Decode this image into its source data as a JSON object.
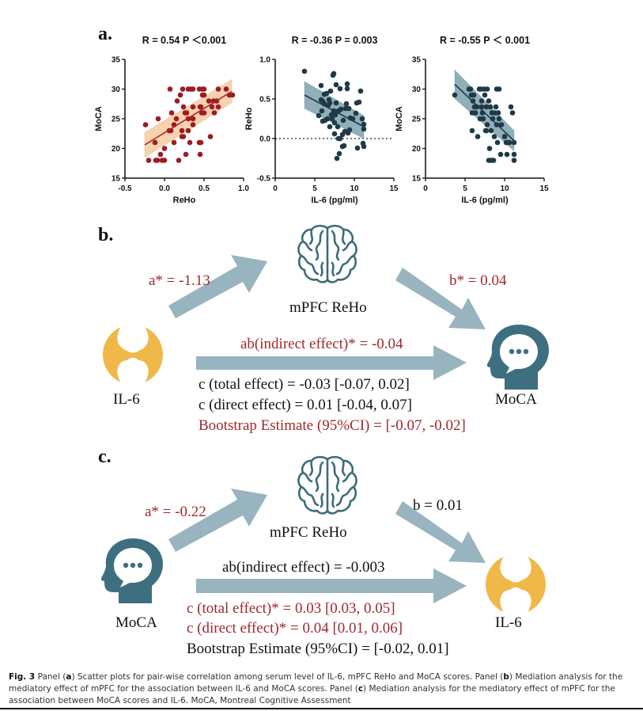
{
  "figure": {
    "panel_labels": {
      "a": "a.",
      "b": "b.",
      "c": "c."
    },
    "colors": {
      "reho_moca_points": "#9e1b22",
      "reho_moca_band": "#f6caa0",
      "il6_points": "#1e3a48",
      "il6_band": "#7ea1ad",
      "arrow": "#98b4be",
      "brain_icon": "#3d6b7a",
      "head_icon": "#3e6f80",
      "joint_icon": "#f0b849",
      "significant_text": "#a0282e"
    }
  },
  "chart_data": [
    {
      "type": "scatter",
      "title": "R = 0.54 P ＜0.001",
      "xlabel": "ReHo",
      "ylabel": "MoCA",
      "xlim": [
        -0.5,
        1.0
      ],
      "ylim": [
        15,
        35
      ],
      "xticks": [
        "-0.5",
        "0.0",
        "0.5",
        "1.0"
      ],
      "yticks": [
        "15",
        "20",
        "25",
        "30",
        "35"
      ],
      "fit_line": {
        "x": [
          -0.25,
          0.85
        ],
        "y": [
          20.6,
          29.6
        ]
      },
      "ci_band": {
        "x": [
          -0.25,
          0.85
        ],
        "lower": [
          18.5,
          27.7
        ],
        "upper": [
          22.7,
          31.6
        ]
      },
      "points": [
        [
          -0.24,
          24
        ],
        [
          -0.2,
          18
        ],
        [
          -0.12,
          21
        ],
        [
          -0.11,
          18
        ],
        [
          -0.09,
          18
        ],
        [
          -0.08,
          25
        ],
        [
          -0.05,
          19
        ],
        [
          -0.03,
          18
        ],
        [
          0.0,
          20
        ],
        [
          0.0,
          18
        ],
        [
          0.06,
          23
        ],
        [
          0.08,
          23
        ],
        [
          0.07,
          30
        ],
        [
          0.09,
          26
        ],
        [
          0.12,
          24
        ],
        [
          0.12,
          21
        ],
        [
          0.15,
          25
        ],
        [
          0.16,
          28
        ],
        [
          0.18,
          18
        ],
        [
          0.2,
          29
        ],
        [
          0.22,
          23
        ],
        [
          0.22,
          22
        ],
        [
          0.24,
          22
        ],
        [
          0.23,
          30
        ],
        [
          0.24,
          27
        ],
        [
          0.26,
          26
        ],
        [
          0.27,
          19
        ],
        [
          0.28,
          26
        ],
        [
          0.3,
          30
        ],
        [
          0.3,
          25
        ],
        [
          0.3,
          23
        ],
        [
          0.32,
          21
        ],
        [
          0.33,
          30
        ],
        [
          0.36,
          30
        ],
        [
          0.36,
          27
        ],
        [
          0.36,
          25
        ],
        [
          0.36,
          24
        ],
        [
          0.44,
          21
        ],
        [
          0.44,
          30
        ],
        [
          0.45,
          27
        ],
        [
          0.45,
          19
        ],
        [
          0.46,
          27
        ],
        [
          0.46,
          21
        ],
        [
          0.47,
          26
        ],
        [
          0.48,
          30
        ],
        [
          0.48,
          29
        ],
        [
          0.5,
          26
        ],
        [
          0.5,
          30
        ],
        [
          0.5,
          29
        ],
        [
          0.56,
          28
        ],
        [
          0.58,
          22
        ],
        [
          0.6,
          27
        ],
        [
          0.62,
          28
        ],
        [
          0.63,
          26
        ],
        [
          0.66,
          28
        ],
        [
          0.68,
          30
        ],
        [
          0.68,
          27
        ],
        [
          0.78,
          30
        ],
        [
          0.82,
          29
        ],
        [
          0.86,
          29
        ]
      ]
    },
    {
      "type": "scatter",
      "title": "R = -0.36 P = 0.003",
      "xlabel": "IL-6 (pg/ml)",
      "ylabel": "ReHo",
      "xlim": [
        0,
        15
      ],
      "ylim": [
        -0.5,
        1.0
      ],
      "xticks": [
        "0",
        "5",
        "10",
        "15"
      ],
      "yticks": [
        "-0.5",
        "0.0",
        "0.5",
        "1.0"
      ],
      "reference_line_y": 0.0,
      "fit_line": {
        "x": [
          3.7,
          11.2
        ],
        "y": [
          0.55,
          0.15
        ]
      },
      "ci_band": {
        "x": [
          3.7,
          11.2
        ],
        "lower": [
          0.38,
          0.0
        ],
        "upper": [
          0.72,
          0.29
        ]
      },
      "points": [
        [
          3.7,
          0.85
        ],
        [
          5.5,
          0.29
        ],
        [
          5.8,
          0.49
        ],
        [
          5.8,
          0.67
        ],
        [
          5.9,
          0.35
        ],
        [
          6.0,
          0.22
        ],
        [
          6.0,
          0.47
        ],
        [
          6.2,
          0.56
        ],
        [
          6.2,
          0.44
        ],
        [
          6.3,
          0.23
        ],
        [
          6.5,
          0.57
        ],
        [
          6.6,
          0.25
        ],
        [
          6.7,
          0.42
        ],
        [
          6.8,
          0.49
        ],
        [
          6.9,
          0.15
        ],
        [
          6.9,
          0.45
        ],
        [
          7.0,
          0.6
        ],
        [
          7.1,
          0.3
        ],
        [
          7.2,
          0.25
        ],
        [
          7.3,
          0.8
        ],
        [
          7.4,
          0.82
        ],
        [
          7.4,
          0.35
        ],
        [
          7.5,
          0.06
        ],
        [
          7.5,
          0.2
        ],
        [
          7.6,
          0.3
        ],
        [
          7.7,
          0.68
        ],
        [
          7.7,
          0.45
        ],
        [
          7.8,
          -0.25
        ],
        [
          7.9,
          0.15
        ],
        [
          8.0,
          0.0
        ],
        [
          8.0,
          0.35
        ],
        [
          8.1,
          -0.19
        ],
        [
          8.2,
          0.0
        ],
        [
          8.2,
          0.63
        ],
        [
          8.3,
          0.37
        ],
        [
          8.5,
          -0.1
        ],
        [
          8.5,
          0.05
        ],
        [
          8.6,
          0.23
        ],
        [
          8.7,
          -0.09
        ],
        [
          8.8,
          0.09
        ],
        [
          8.9,
          0.38
        ],
        [
          9.0,
          0.44
        ],
        [
          9.1,
          0.69
        ],
        [
          9.1,
          0.63
        ],
        [
          9.2,
          0.07
        ],
        [
          9.3,
          0.38
        ],
        [
          9.4,
          0.11
        ],
        [
          9.5,
          0.26
        ],
        [
          9.8,
          0.25
        ],
        [
          10.2,
          0.32
        ],
        [
          10.3,
          0.45
        ],
        [
          10.4,
          -0.12
        ],
        [
          10.6,
          0.46
        ],
        [
          10.8,
          0.6
        ],
        [
          11.0,
          0.25
        ],
        [
          11.1,
          -0.06
        ],
        [
          11.2,
          0.12
        ],
        [
          11.2,
          0.18
        ],
        [
          11.2,
          -0.1
        ]
      ]
    },
    {
      "type": "scatter",
      "title": "R = -0.55 P ＜ 0.001",
      "xlabel": "IL-6 (pg/ml)",
      "ylabel": "MoCA",
      "xlim": [
        0,
        15
      ],
      "ylim": [
        15,
        35
      ],
      "xticks": [
        "0",
        "5",
        "10",
        "15"
      ],
      "yticks": [
        "15",
        "20",
        "25",
        "30",
        "35"
      ],
      "fit_line": {
        "x": [
          3.7,
          11.2
        ],
        "y": [
          30.8,
          21.3
        ]
      },
      "ci_band": {
        "x": [
          3.7,
          11.2
        ],
        "lower": [
          28.4,
          19.6
        ],
        "upper": [
          33.2,
          23.0
        ]
      },
      "points": [
        [
          3.7,
          29
        ],
        [
          5.5,
          30
        ],
        [
          5.7,
          30
        ],
        [
          5.8,
          29
        ],
        [
          5.9,
          26
        ],
        [
          5.9,
          23
        ],
        [
          6.0,
          28
        ],
        [
          6.1,
          29
        ],
        [
          6.2,
          27
        ],
        [
          6.3,
          26
        ],
        [
          6.5,
          27
        ],
        [
          6.6,
          22
        ],
        [
          6.8,
          30
        ],
        [
          6.9,
          25
        ],
        [
          7.0,
          30
        ],
        [
          7.1,
          28
        ],
        [
          7.1,
          27
        ],
        [
          7.2,
          26
        ],
        [
          7.3,
          25
        ],
        [
          7.4,
          30
        ],
        [
          7.5,
          29
        ],
        [
          7.6,
          23
        ],
        [
          7.7,
          23
        ],
        [
          7.7,
          27
        ],
        [
          7.8,
          30
        ],
        [
          7.8,
          24
        ],
        [
          8.0,
          18
        ],
        [
          8.0,
          28
        ],
        [
          8.1,
          20
        ],
        [
          8.2,
          27
        ],
        [
          8.3,
          23
        ],
        [
          8.3,
          18
        ],
        [
          8.4,
          26
        ],
        [
          8.5,
          25
        ],
        [
          8.6,
          18
        ],
        [
          8.7,
          22
        ],
        [
          8.8,
          26
        ],
        [
          8.9,
          27
        ],
        [
          9.0,
          24
        ],
        [
          9.0,
          30
        ],
        [
          9.1,
          21
        ],
        [
          9.2,
          26
        ],
        [
          9.3,
          30
        ],
        [
          9.3,
          25
        ],
        [
          9.5,
          19
        ],
        [
          9.6,
          24
        ],
        [
          10.0,
          22
        ],
        [
          10.2,
          21
        ],
        [
          10.3,
          19
        ],
        [
          10.4,
          21
        ],
        [
          10.6,
          21
        ],
        [
          10.8,
          27
        ],
        [
          11.0,
          26
        ],
        [
          11.2,
          21
        ],
        [
          11.2,
          19
        ],
        [
          11.2,
          18
        ]
      ]
    }
  ],
  "mediation_b": {
    "mediator": "mPFC ReHo",
    "predictor": "IL-6",
    "outcome": "MoCA",
    "a_path": "a* = -1.13",
    "b_path": "b* = 0.04",
    "indirect": "ab(indirect effect)* = -0.04",
    "total": "c (total effect) = -0.03 [-0.07, 0.02]",
    "direct": "c (direct effect) = 0.01 [-0.04, 0.07]",
    "bootstrap": "Bootstrap Estimate (95%CI) = [-0.07, -0.02]"
  },
  "mediation_c": {
    "mediator": "mPFC ReHo",
    "predictor": "MoCA",
    "outcome": "IL-6",
    "a_path": "a* =  -0.22",
    "b_path": "b = 0.01",
    "indirect": "ab(indirect effect) = -0.003",
    "total": "c (total effect)* = 0.03 [0.03, 0.05]",
    "direct": "c (direct effect)*  = 0.04 [0.01, 0.06]",
    "bootstrap": "Bootstrap Estimate (95%CI) = [-0.02, 0.01]"
  },
  "caption": {
    "fig_label": "Fig. 3",
    "p1": " Panel (",
    "a": "a",
    "p2": ") Scatter plots for pair-wise correlation among serum level of IL-6, mPFC ReHo and MoCA scores. Panel (",
    "b": "b",
    "p3": ") Mediation analysis for the mediatory effect of mPFC for the association between IL-6 and MoCA scores. Panel (",
    "c": "c",
    "p4": ") Mediation analysis for the mediatory effect of mPFC for the association between MoCA scores and IL-6. MoCA, Montreal Cognitive Assessment"
  }
}
